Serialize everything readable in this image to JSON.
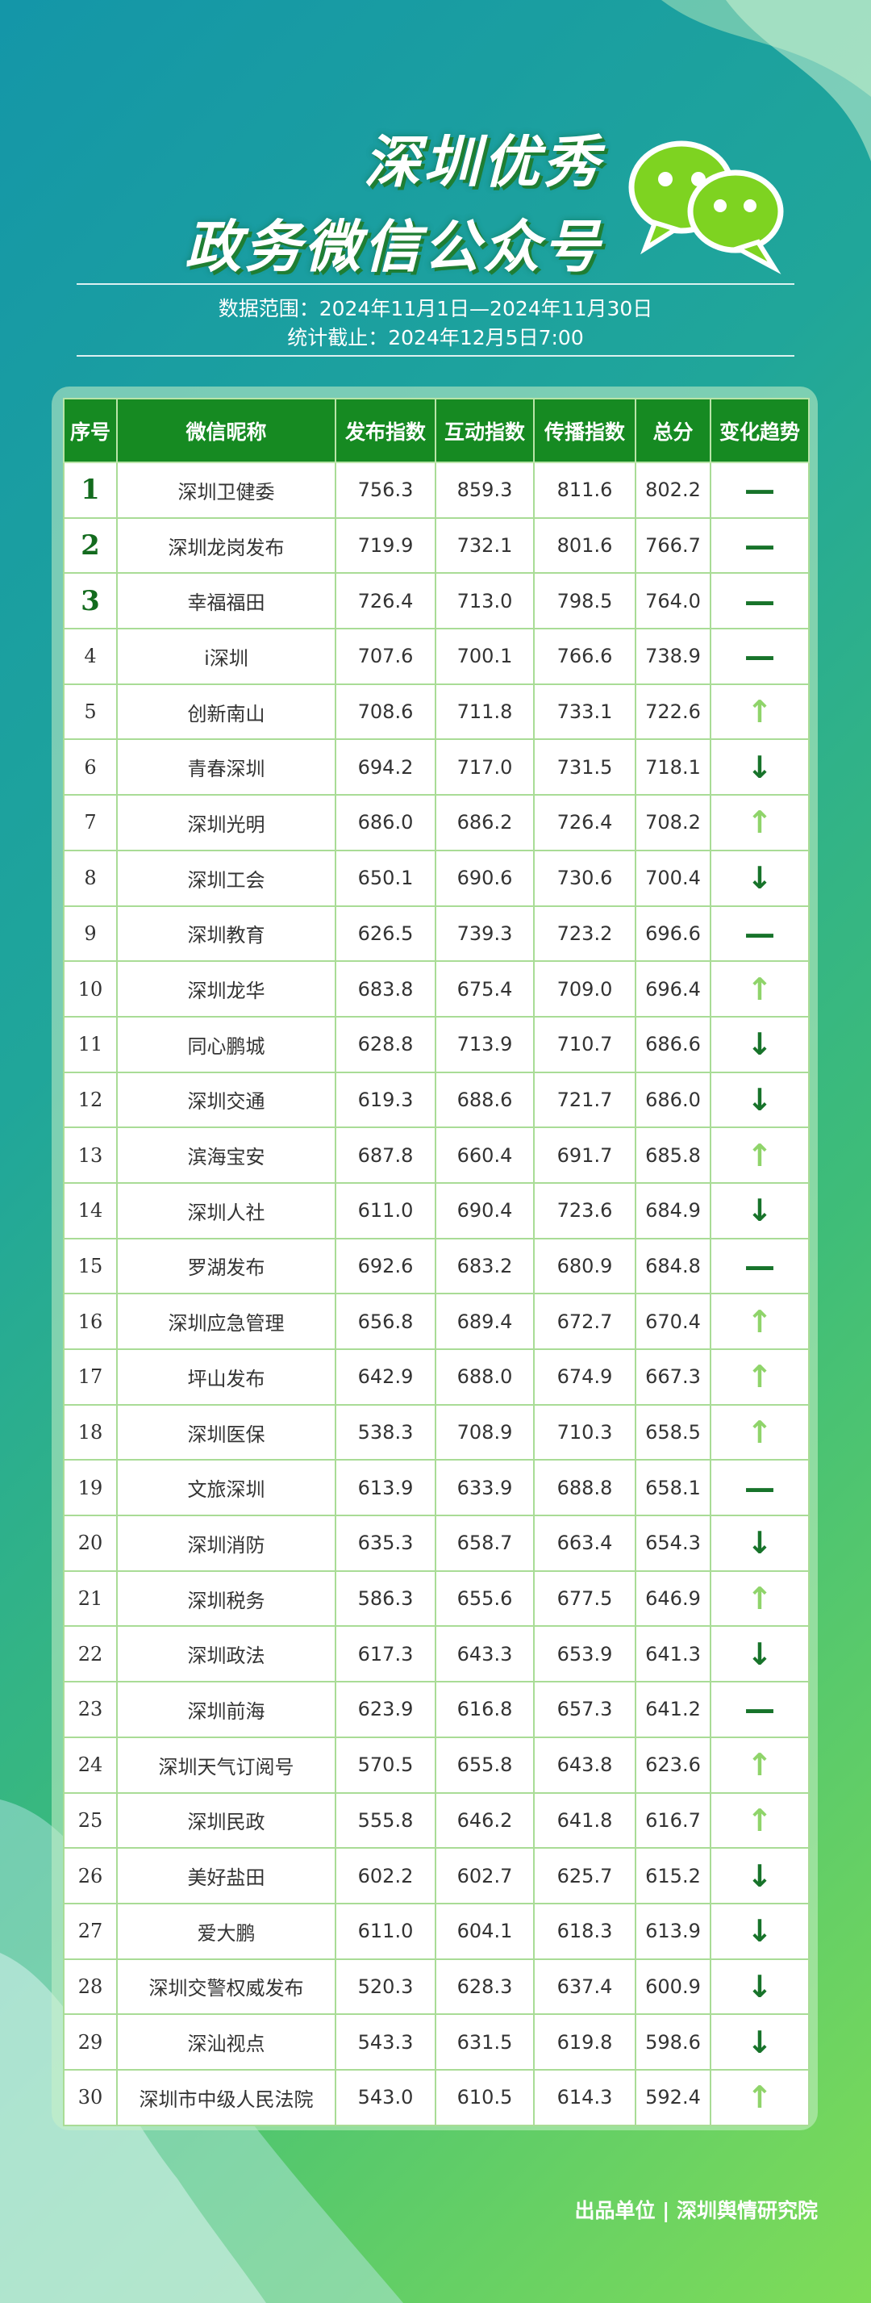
{
  "header": {
    "title_line1": "深圳优秀",
    "title_line2": "政务微信公众号",
    "range": "数据范围：2024年11月1日—2024年11月30日",
    "cutoff": "统计截止：2024年12月5日7:00"
  },
  "table": {
    "header": [
      "序号",
      "微信昵称",
      "发布指数",
      "互动指数",
      "传播指数",
      "总分",
      "变化趋势"
    ],
    "rows": [
      [
        "1",
        "深圳卫健委",
        "756.3",
        "859.3",
        "811.6",
        "802.2",
        "—"
      ],
      [
        "2",
        "深圳龙岗发布",
        "719.9",
        "732.1",
        "801.6",
        "766.7",
        "—"
      ],
      [
        "3",
        "幸福福田",
        "726.4",
        "713.0",
        "798.5",
        "764.0",
        "—"
      ],
      [
        "4",
        "i深圳",
        "707.6",
        "700.1",
        "766.6",
        "738.9",
        "—"
      ],
      [
        "5",
        "创新南山",
        "708.6",
        "711.8",
        "733.1",
        "722.6",
        "↑"
      ],
      [
        "6",
        "青春深圳",
        "694.2",
        "717.0",
        "731.5",
        "718.1",
        "↓"
      ],
      [
        "7",
        "深圳光明",
        "686.0",
        "686.2",
        "726.4",
        "708.2",
        "↑"
      ],
      [
        "8",
        "深圳工会",
        "650.1",
        "690.6",
        "730.6",
        "700.4",
        "↓"
      ],
      [
        "9",
        "深圳教育",
        "626.5",
        "739.3",
        "723.2",
        "696.6",
        "—"
      ],
      [
        "10",
        "深圳龙华",
        "683.8",
        "675.4",
        "709.0",
        "696.4",
        "↑"
      ],
      [
        "11",
        "同心鹏城",
        "628.8",
        "713.9",
        "710.7",
        "686.6",
        "↓"
      ],
      [
        "12",
        "深圳交通",
        "619.3",
        "688.6",
        "721.7",
        "686.0",
        "↓"
      ],
      [
        "13",
        "滨海宝安",
        "687.8",
        "660.4",
        "691.7",
        "685.8",
        "↑"
      ],
      [
        "14",
        "深圳人社",
        "611.0",
        "690.4",
        "723.6",
        "684.9",
        "↓"
      ],
      [
        "15",
        "罗湖发布",
        "692.6",
        "683.2",
        "680.9",
        "684.8",
        "—"
      ],
      [
        "16",
        "深圳应急管理",
        "656.8",
        "689.4",
        "672.7",
        "670.4",
        "↑"
      ],
      [
        "17",
        "坪山发布",
        "642.9",
        "688.0",
        "674.9",
        "667.3",
        "↑"
      ],
      [
        "18",
        "深圳医保",
        "538.3",
        "708.9",
        "710.3",
        "658.5",
        "↑"
      ],
      [
        "19",
        "文旅深圳",
        "613.9",
        "633.9",
        "688.8",
        "658.1",
        "—"
      ],
      [
        "20",
        "深圳消防",
        "635.3",
        "658.7",
        "663.4",
        "654.3",
        "↓"
      ],
      [
        "21",
        "深圳税务",
        "586.3",
        "655.6",
        "677.5",
        "646.9",
        "↑"
      ],
      [
        "22",
        "深圳政法",
        "617.3",
        "643.3",
        "653.9",
        "641.3",
        "↓"
      ],
      [
        "23",
        "深圳前海",
        "623.9",
        "616.8",
        "657.3",
        "641.2",
        "—"
      ],
      [
        "24",
        "深圳天气订阅号",
        "570.5",
        "655.8",
        "643.8",
        "623.6",
        "↑"
      ],
      [
        "25",
        "深圳民政",
        "555.8",
        "646.2",
        "641.8",
        "616.7",
        "↑"
      ],
      [
        "26",
        "美好盐田",
        "602.2",
        "602.7",
        "625.7",
        "615.2",
        "↓"
      ],
      [
        "27",
        "爱大鹏",
        "611.0",
        "604.1",
        "618.3",
        "613.9",
        "↓"
      ],
      [
        "28",
        "深圳交警权威发布",
        "520.3",
        "628.3",
        "637.4",
        "600.9",
        "↓"
      ],
      [
        "29",
        "深汕视点",
        "543.3",
        "631.5",
        "619.8",
        "598.6",
        "↓"
      ],
      [
        "30",
        "深圳市中级人民法院",
        "543.0",
        "610.5",
        "614.3",
        "592.4",
        "↑"
      ]
    ]
  },
  "footer": {
    "credit": "出品单位 | 深圳舆情研究院"
  }
}
